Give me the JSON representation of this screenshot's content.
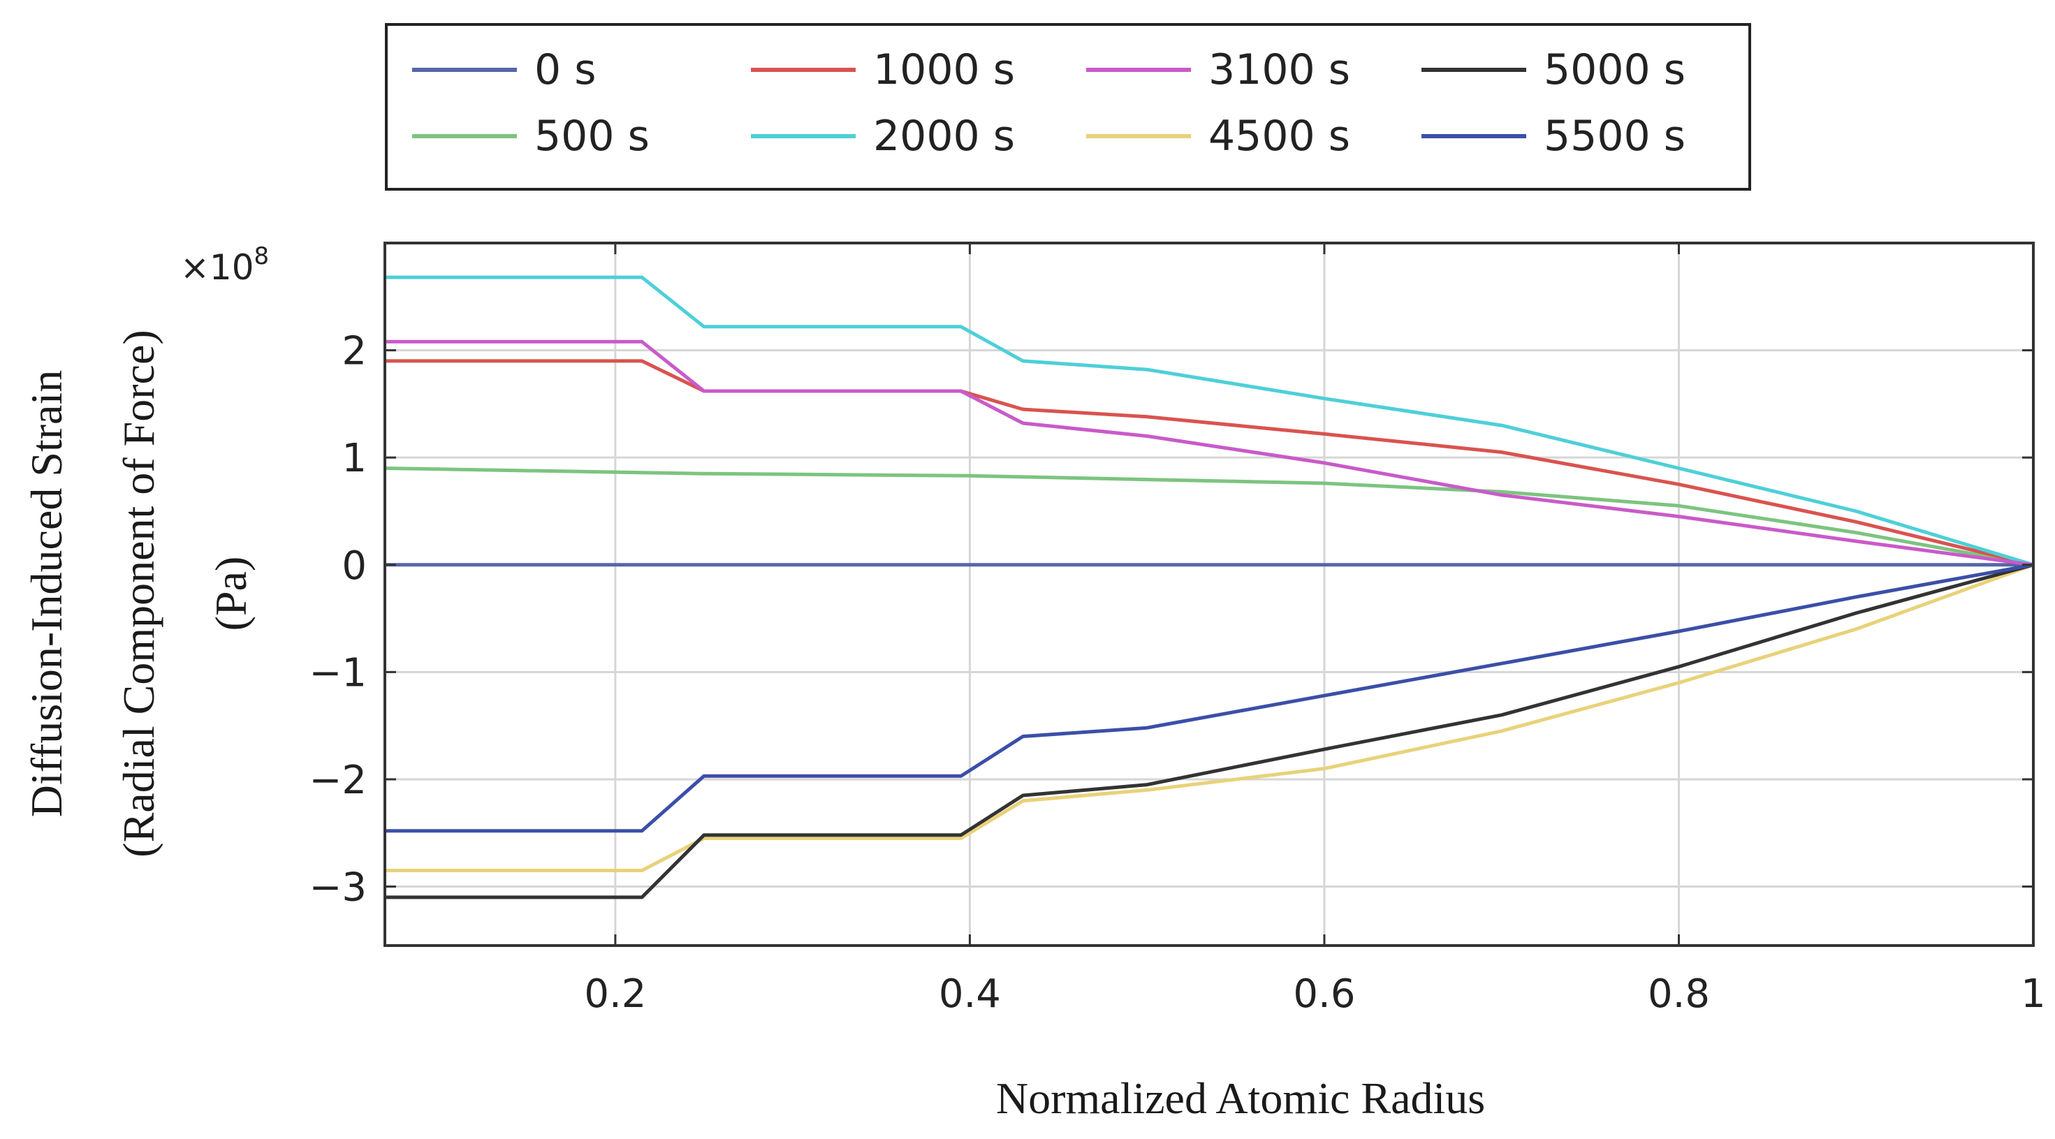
{
  "chart_data": {
    "type": "line",
    "title": "",
    "xlabel": "Normalized Atomic Radius",
    "ylabel_lines": [
      "Diffusion-Induced Strain",
      "(Radial Component of Force)",
      "(Pa)"
    ],
    "y_exponent": "×10",
    "y_exponent_power": "8",
    "xlim": [
      0.07,
      1.0
    ],
    "ylim": [
      -3.55,
      3.0
    ],
    "xticks": [
      0.2,
      0.4,
      0.6,
      0.8,
      1
    ],
    "xtick_labels": [
      "0.2",
      "0.4",
      "0.6",
      "0.8",
      "1"
    ],
    "yticks": [
      -3,
      -2,
      -1,
      0,
      1,
      2
    ],
    "ytick_labels": [
      "−3",
      "−2",
      "−1",
      "0",
      "1",
      "2"
    ],
    "grid": true,
    "legend_position": "top",
    "series": [
      {
        "name": "0 s",
        "color": "#5566aa",
        "x": [
          0.07,
          1.0
        ],
        "y": [
          0.0,
          0.0
        ]
      },
      {
        "name": "500 s",
        "color": "#7cc47f",
        "x": [
          0.07,
          0.25,
          0.4,
          0.6,
          0.7,
          0.8,
          0.9,
          1.0
        ],
        "y": [
          0.9,
          0.85,
          0.83,
          0.76,
          0.68,
          0.55,
          0.3,
          0.0
        ]
      },
      {
        "name": "1000 s",
        "color": "#d9534f",
        "x": [
          0.07,
          0.215,
          0.25,
          0.395,
          0.43,
          0.5,
          0.6,
          0.7,
          0.8,
          0.9,
          1.0
        ],
        "y": [
          1.9,
          1.9,
          1.62,
          1.62,
          1.45,
          1.38,
          1.22,
          1.05,
          0.75,
          0.4,
          0.0
        ]
      },
      {
        "name": "2000 s",
        "color": "#4ecfd8",
        "x": [
          0.07,
          0.215,
          0.25,
          0.395,
          0.43,
          0.5,
          0.6,
          0.7,
          0.8,
          0.9,
          1.0
        ],
        "y": [
          2.68,
          2.68,
          2.22,
          2.22,
          1.9,
          1.82,
          1.55,
          1.3,
          0.9,
          0.5,
          0.0
        ]
      },
      {
        "name": "3100 s",
        "color": "#c95ac9",
        "x": [
          0.07,
          0.215,
          0.25,
          0.395,
          0.43,
          0.5,
          0.6,
          0.7,
          0.8,
          0.9,
          1.0
        ],
        "y": [
          2.08,
          2.08,
          1.62,
          1.62,
          1.32,
          1.2,
          0.95,
          0.65,
          0.45,
          0.22,
          0.0
        ]
      },
      {
        "name": "4500 s",
        "color": "#e8d27a",
        "x": [
          0.07,
          0.215,
          0.25,
          0.395,
          0.43,
          0.5,
          0.6,
          0.7,
          0.8,
          0.9,
          1.0
        ],
        "y": [
          -2.85,
          -2.85,
          -2.55,
          -2.55,
          -2.2,
          -2.1,
          -1.9,
          -1.55,
          -1.1,
          -0.6,
          0.0
        ]
      },
      {
        "name": "5000 s",
        "color": "#333333",
        "x": [
          0.07,
          0.215,
          0.25,
          0.395,
          0.43,
          0.5,
          0.6,
          0.7,
          0.8,
          0.9,
          1.0
        ],
        "y": [
          -3.1,
          -3.1,
          -2.52,
          -2.52,
          -2.15,
          -2.05,
          -1.72,
          -1.4,
          -0.95,
          -0.45,
          0.0
        ]
      },
      {
        "name": "5500 s",
        "color": "#3b4fa8",
        "x": [
          0.07,
          0.215,
          0.25,
          0.395,
          0.43,
          0.5,
          0.6,
          0.7,
          0.8,
          0.9,
          1.0
        ],
        "y": [
          -2.48,
          -2.48,
          -1.97,
          -1.97,
          -1.6,
          -1.52,
          -1.22,
          -0.92,
          -0.62,
          -0.3,
          0.0
        ]
      }
    ]
  }
}
